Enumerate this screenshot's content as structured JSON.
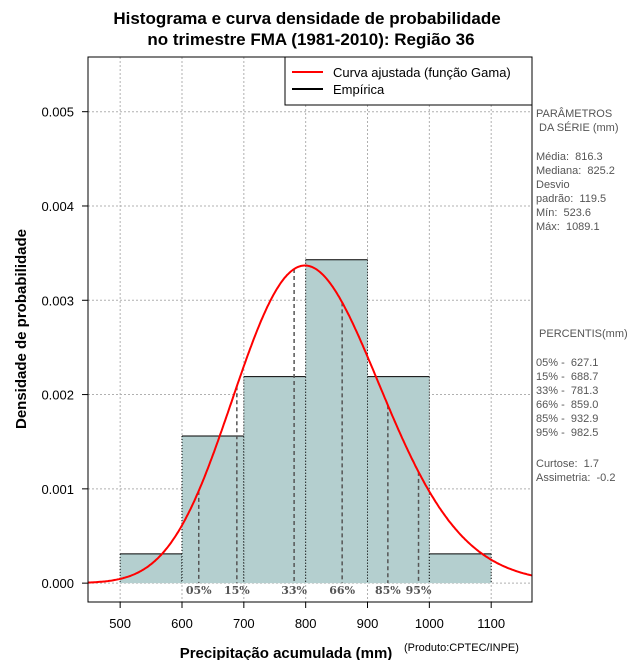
{
  "chart_data": {
    "type": "bar",
    "title_lines": [
      "Histograma e curva densidade de probabilidade",
      "no trimestre FMA (1981-2010): Região 36"
    ],
    "xlabel": "Precipitação acumulada (mm)",
    "ylabel": "Densidade de probabilidade",
    "xlim": [
      448,
      1166
    ],
    "ylim": [
      -0.0002,
      0.00558
    ],
    "x_ticks": [
      500,
      600,
      700,
      800,
      900,
      1000,
      1100
    ],
    "y_ticks": [
      0.0,
      0.001,
      0.002,
      0.003,
      0.004,
      0.005
    ],
    "y_tick_labels": [
      "0.000",
      "0.001",
      "0.002",
      "0.003",
      "0.004",
      "0.005"
    ],
    "grid": true,
    "bins": [
      {
        "x0": 500,
        "x1": 600,
        "density": 0.00031
      },
      {
        "x0": 600,
        "x1": 700,
        "density": 0.00156
      },
      {
        "x0": 700,
        "x1": 800,
        "density": 0.00219
      },
      {
        "x0": 800,
        "x1": 900,
        "density": 0.00343
      },
      {
        "x0": 900,
        "x1": 1000,
        "density": 0.00219
      },
      {
        "x0": 1000,
        "x1": 1100,
        "density": 0.00031
      }
    ],
    "gamma_curve": {
      "mean": 816.3,
      "sd": 119.5
    },
    "percentile_lines": [
      {
        "label": "05%",
        "x": 627.1
      },
      {
        "label": "15%",
        "x": 688.7
      },
      {
        "label": "33%",
        "x": 781.3
      },
      {
        "label": "66%",
        "x": 859.0
      },
      {
        "label": "85%",
        "x": 932.9
      },
      {
        "label": "95%",
        "x": 982.5
      }
    ],
    "legend": {
      "placement": "top-right",
      "entries": [
        {
          "label": "Curva ajustada (função Gama)",
          "color": "#ff0000"
        },
        {
          "label": "Empírica",
          "color": "#000000"
        }
      ]
    },
    "colors": {
      "bars": "#b4cfcf",
      "curve": "#ff0000",
      "grid": "#b0b0b0",
      "percentile": "#555555"
    }
  },
  "side_panel": {
    "params_title": "PARÂMETROS\n DA SÉRIE (mm)",
    "params_body": "Média:  816.3\nMediana:  825.2\nDesvio\npadrão:  119.5\nMín:  523.6\nMáx:  1089.1",
    "percentis_title": " PERCENTIS(mm)",
    "percentis_body": "05% -  627.1\n15% -  688.7\n33% -  781.3\n66% -  859.0\n85% -  932.9\n95% -  982.5",
    "stats_body": "Curtose:  1.7\nAssimetria:  -0.2"
  },
  "credit": "(Produto:CPTEC/INPE)"
}
